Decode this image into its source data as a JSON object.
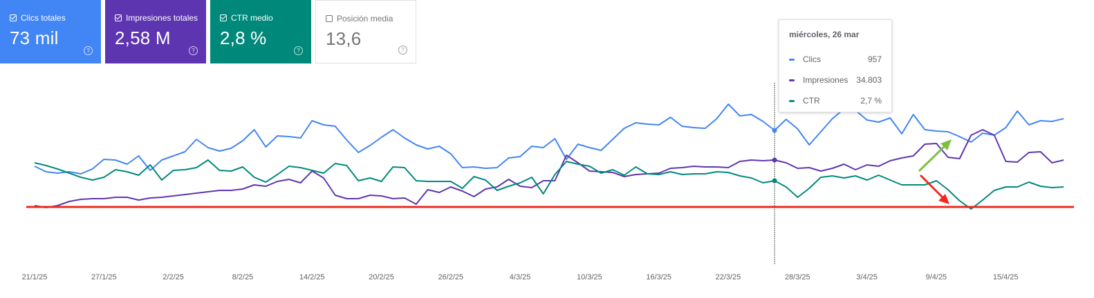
{
  "cards": [
    {
      "label": "Clics totales",
      "value": "73 mil",
      "checked": true,
      "color": "#4285f4"
    },
    {
      "label": "Impresiones totales",
      "value": "2,58 M",
      "checked": true,
      "color": "#5e35b1"
    },
    {
      "label": "CTR medio",
      "value": "2,8 %",
      "checked": true,
      "color": "#00897b"
    },
    {
      "label": "Posición media",
      "value": "13,6",
      "checked": false,
      "color": "#ffffff"
    }
  ],
  "tooltip": {
    "date": "miércoles, 26 mar",
    "rows": [
      {
        "name": "Clics",
        "value": "957",
        "color": "#4285f4"
      },
      {
        "name": "Impresiones",
        "value": "34.803",
        "color": "#5e35b1"
      },
      {
        "name": "CTR",
        "value": "2,7 %",
        "color": "#00897b"
      }
    ]
  },
  "chart_data": {
    "type": "line",
    "x_ticks": [
      "21/1/25",
      "27/1/25",
      "2/2/25",
      "8/2/25",
      "14/2/25",
      "20/2/25",
      "26/2/25",
      "4/3/25",
      "10/3/25",
      "16/3/25",
      "22/3/25",
      "28/3/25",
      "3/4/25",
      "9/4/25",
      "15/4/25"
    ],
    "first_date": "21/1/25",
    "n_points": 90,
    "hover_index": 64,
    "series": [
      {
        "name": "Clics",
        "color": "#4285f4",
        "values": [
          241,
          249,
          251,
          249,
          252,
          245,
          231,
          232,
          238,
          226,
          247,
          232,
          226,
          220,
          202,
          214,
          219,
          215,
          204,
          188,
          213,
          197,
          198,
          200,
          175,
          181,
          183,
          203,
          221,
          211,
          199,
          188,
          200,
          210,
          216,
          212,
          223,
          243,
          242,
          244,
          243,
          229,
          227,
          212,
          214,
          201,
          231,
          209,
          214,
          218,
          202,
          186,
          178,
          180,
          181,
          170,
          183,
          185,
          186,
          172,
          151,
          168,
          166,
          176,
          189,
          173,
          187,
          210,
          191,
          172,
          158,
          160,
          174,
          177,
          171,
          194,
          166,
          188,
          190,
          191,
          198,
          206,
          193,
          196,
          185,
          161,
          181,
          175,
          176,
          172
        ]
      },
      {
        "name": "Impresiones",
        "color": "#5e35b1",
        "values": [
          298,
          301,
          298,
          292,
          289,
          288,
          288,
          286,
          286,
          290,
          287,
          286,
          284,
          282,
          280,
          278,
          276,
          276,
          274,
          268,
          270,
          263,
          260,
          265,
          248,
          258,
          283,
          288,
          288,
          283,
          284,
          288,
          287,
          296,
          275,
          279,
          271,
          277,
          285,
          274,
          271,
          260,
          270,
          272,
          262,
          262,
          225,
          236,
          248,
          249,
          250,
          256,
          253,
          252,
          251,
          244,
          243,
          241,
          242,
          242,
          243,
          234,
          232,
          233,
          232,
          236,
          244,
          243,
          248,
          244,
          238,
          246,
          239,
          241,
          233,
          229,
          226,
          209,
          208,
          228,
          230,
          196,
          188,
          196,
          234,
          235,
          221,
          220,
          236,
          232
        ]
      },
      {
        "name": "CTR",
        "color": "#00897b",
        "values": [
          236,
          240,
          245,
          251,
          257,
          261,
          257,
          246,
          249,
          254,
          239,
          261,
          247,
          246,
          243,
          232,
          247,
          248,
          242,
          257,
          264,
          253,
          241,
          243,
          247,
          251,
          237,
          240,
          262,
          258,
          263,
          242,
          243,
          262,
          263,
          263,
          263,
          273,
          256,
          261,
          276,
          270,
          265,
          257,
          281,
          253,
          234,
          238,
          241,
          251,
          246,
          254,
          242,
          252,
          253,
          249,
          253,
          252,
          252,
          249,
          250,
          255,
          258,
          265,
          262,
          271,
          286,
          273,
          257,
          255,
          258,
          255,
          261,
          254,
          261,
          268,
          268,
          268,
          262,
          275,
          291,
          303,
          290,
          276,
          271,
          271,
          264,
          270,
          272,
          271
        ]
      }
    ]
  }
}
